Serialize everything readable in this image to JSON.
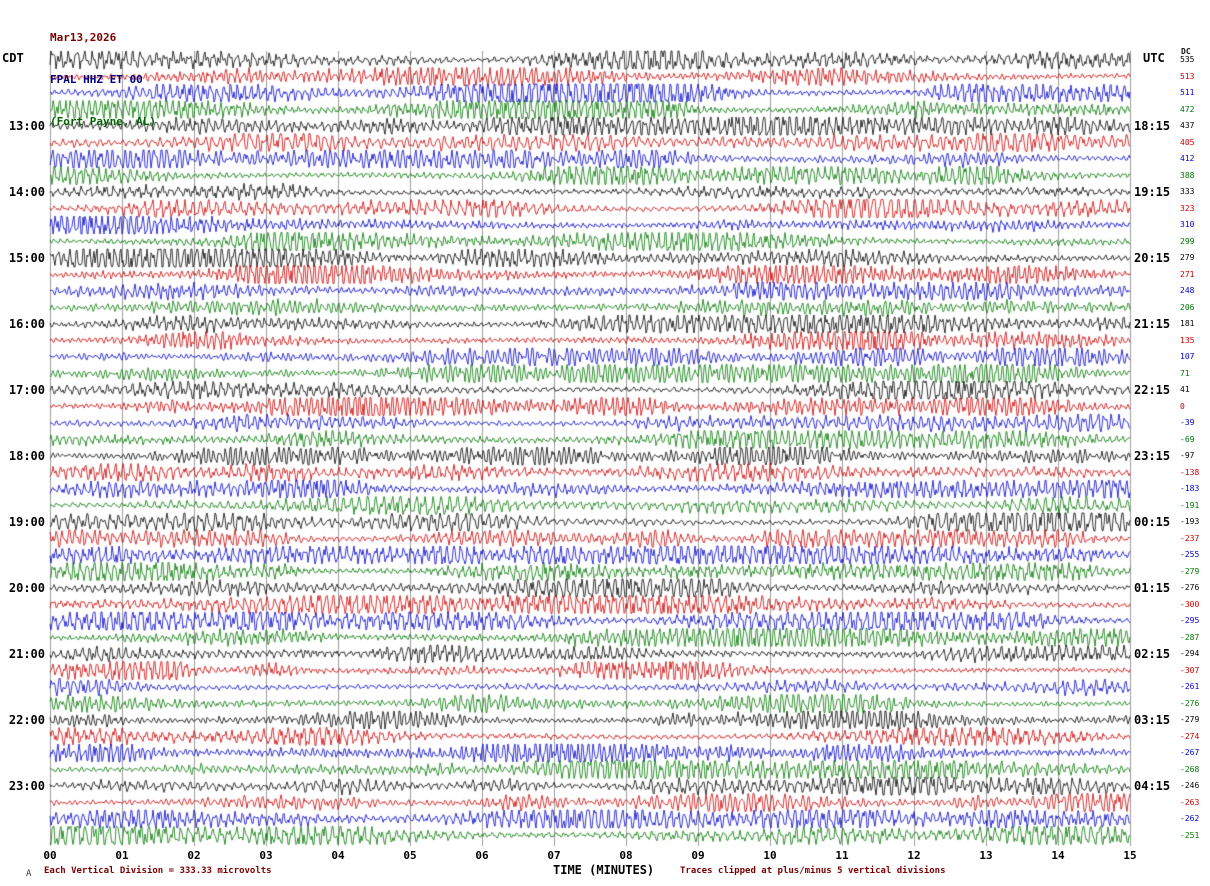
{
  "title": {
    "date": "Mar13,2026",
    "station": "FPAL HHZ ET 00",
    "location": "(Fort Payne, AL)"
  },
  "axes": {
    "left_label": "CDT",
    "right_label": "UTC",
    "dc_label": "DC",
    "x_axis_label": "TIME (MINUTES)",
    "x_ticks": [
      "00",
      "01",
      "02",
      "03",
      "04",
      "05",
      "06",
      "07",
      "08",
      "09",
      "10",
      "11",
      "12",
      "13",
      "14",
      "15"
    ]
  },
  "footer": {
    "left_note": "Each Vertical Division =  333.33 microvolts",
    "right_note": "Traces clipped at plus/minus 5 vertical divisions",
    "logo": "A"
  },
  "chart_data": {
    "type": "line",
    "subtype": "helicorder-seismogram",
    "rows": 48,
    "minutes_per_row": 15,
    "row_start_time_cdt": "12:00",
    "xlim": [
      0,
      15
    ],
    "clip_divisions": 5,
    "microvolts_per_division": 333.33,
    "grid": "vertical lines every 1 minute",
    "grid_color": "#9c9c9c",
    "trace_colors": [
      "#000000",
      "#cc0000",
      "#0000cc",
      "#007700"
    ],
    "left_time_labels": [
      {
        "row": 4,
        "label": "13:00"
      },
      {
        "row": 8,
        "label": "14:00"
      },
      {
        "row": 12,
        "label": "15:00"
      },
      {
        "row": 16,
        "label": "16:00"
      },
      {
        "row": 20,
        "label": "17:00"
      },
      {
        "row": 24,
        "label": "18:00"
      },
      {
        "row": 28,
        "label": "19:00"
      },
      {
        "row": 32,
        "label": "20:00"
      },
      {
        "row": 36,
        "label": "21:00"
      },
      {
        "row": 40,
        "label": "22:00"
      },
      {
        "row": 44,
        "label": "23:00"
      }
    ],
    "right_time_labels": [
      {
        "row": 4,
        "label": "18:15"
      },
      {
        "row": 8,
        "label": "19:15"
      },
      {
        "row": 12,
        "label": "20:15"
      },
      {
        "row": 16,
        "label": "21:15"
      },
      {
        "row": 20,
        "label": "22:15"
      },
      {
        "row": 24,
        "label": "23:15"
      },
      {
        "row": 28,
        "label": "00:15"
      },
      {
        "row": 32,
        "label": "01:15"
      },
      {
        "row": 36,
        "label": "02:15"
      },
      {
        "row": 40,
        "label": "03:15"
      },
      {
        "row": 44,
        "label": "04:15"
      }
    ],
    "dc_values": [
      535,
      513,
      511,
      472,
      437,
      405,
      412,
      388,
      333,
      323,
      310,
      299,
      279,
      271,
      248,
      206,
      181,
      135,
      107,
      71,
      41,
      0,
      -39,
      -69,
      -97,
      -138,
      -183,
      -191,
      -193,
      -237,
      -255,
      -279,
      -276,
      -300,
      -295,
      -287,
      -294,
      -307,
      -261,
      -276,
      -279,
      -274,
      -267,
      -268,
      -246,
      -263,
      -262,
      -251
    ],
    "note": "continuous background seismic noise traces; waveform samples synthesized, amplitudes clipped at plus/minus 5 vertical divisions"
  }
}
